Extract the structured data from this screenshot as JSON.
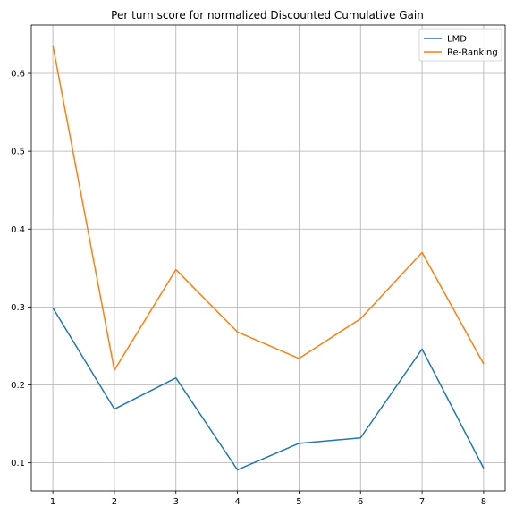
{
  "chart_data": {
    "type": "line",
    "title": "Per turn score for normalized Discounted Cumulative Gain",
    "xlabel": "",
    "ylabel": "",
    "x": [
      1,
      2,
      3,
      4,
      5,
      6,
      7,
      8
    ],
    "xlim": [
      0.65,
      8.35
    ],
    "ylim": [
      0.064,
      0.662
    ],
    "yticks": [
      0.1,
      0.2,
      0.3,
      0.4,
      0.5,
      0.6
    ],
    "ytick_labels": [
      "0.1",
      "0.2",
      "0.3",
      "0.4",
      "0.5",
      "0.6"
    ],
    "xtick_labels": [
      "1",
      "2",
      "3",
      "4",
      "5",
      "6",
      "7",
      "8"
    ],
    "grid": true,
    "legend_position": "top-right",
    "series": [
      {
        "name": "LMD",
        "color": "#1f77b4",
        "values": [
          0.299,
          0.169,
          0.209,
          0.091,
          0.125,
          0.132,
          0.246,
          0.093
        ]
      },
      {
        "name": "Re-Ranking",
        "color": "#ff7f0e",
        "values": [
          0.636,
          0.219,
          0.348,
          0.268,
          0.234,
          0.285,
          0.37,
          0.227
        ]
      }
    ]
  }
}
